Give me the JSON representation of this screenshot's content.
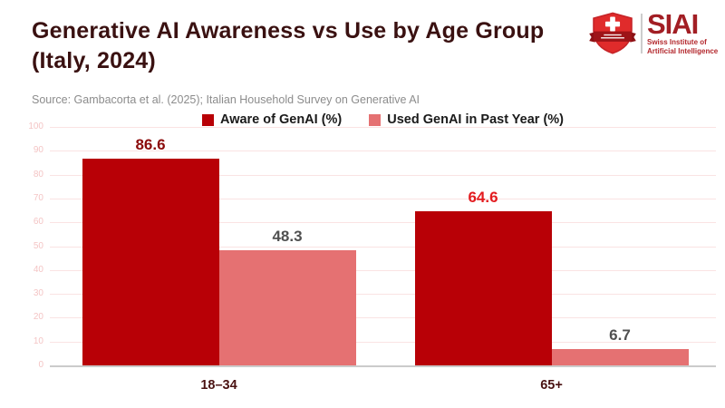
{
  "header": {
    "title": "Generative AI Awareness vs Use by Age Group (Italy, 2024)",
    "source": "Source: Gambacorta et al. (2025); Italian Household Survey on Generative AI",
    "title_color": "#3a1111",
    "source_color": "#8c8c8c"
  },
  "logo": {
    "acronym": "SIAI",
    "subtitle_line1": "Swiss Institute of",
    "subtitle_line2": "Artificial Intelligence",
    "text_color": "#a21e24",
    "shield_color": "#e02b2b",
    "shield_edge_color": "#c62428",
    "banner_color": "#9e1418",
    "cross_color": "#ffffff",
    "divider_color": "#cccccc"
  },
  "chart_data": {
    "type": "bar",
    "title": "Generative AI Awareness vs Use by Age Group (Italy, 2024)",
    "categories": [
      "18–34",
      "65+"
    ],
    "series": [
      {
        "name": "Aware of GenAI (%)",
        "values": [
          86.6,
          64.6
        ],
        "color": "#b80006",
        "value_label_colors": [
          "#8b0a0a",
          "#e31b1f"
        ]
      },
      {
        "name": "Used GenAI in Past Year (%)",
        "values": [
          48.3,
          6.7
        ],
        "color": "#e57172",
        "value_label_colors": [
          "#505050",
          "#505050"
        ]
      }
    ],
    "ylim": [
      0,
      100
    ],
    "yticks": [
      0,
      10,
      20,
      30,
      40,
      50,
      60,
      70,
      80,
      90,
      100
    ],
    "grid": true,
    "gridline_color": "#fae3e3",
    "baseline_color": "#cbcbcb",
    "ytick_label_color": "#f4c5c5",
    "xtick_label_color": "#4a1212",
    "legend_position": "top-center",
    "legend_text_color": "#1a1a1a"
  }
}
